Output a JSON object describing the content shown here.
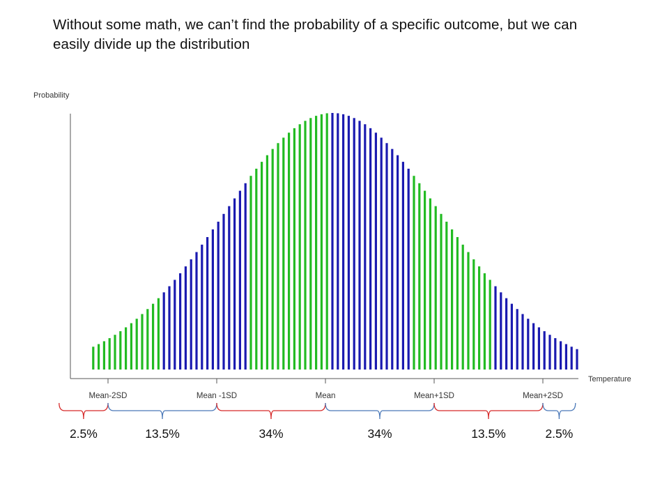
{
  "slide": {
    "title": "Without some math, we can’t find the probability of a specific outcome, but we can easily divide up the distribution"
  },
  "chart_data": {
    "type": "bar",
    "title": "",
    "ylabel": "Probability",
    "xlabel": "Temperature",
    "xlim": [
      -2.4,
      2.25
    ],
    "ylim": [
      0,
      1
    ],
    "bar_count": 90,
    "x_start": -2.2,
    "x_step": 0.05,
    "distribution": "normal (bell curve), mean = 0, SD = 1",
    "color_segments": [
      {
        "from": -2.2,
        "to": -1.55,
        "color": "#22bb22"
      },
      {
        "from": -1.55,
        "to": -0.75,
        "color": "#1a1ab0"
      },
      {
        "from": -0.75,
        "to": 0.0,
        "color": "#22bb22"
      },
      {
        "from": 0.0,
        "to": 0.75,
        "color": "#1a1ab0"
      },
      {
        "from": 0.75,
        "to": 1.5,
        "color": "#22bb22"
      },
      {
        "from": 1.5,
        "to": 2.25,
        "color": "#1a1ab0"
      }
    ],
    "ticks": [
      {
        "x": -2,
        "label": "Mean-2SD"
      },
      {
        "x": -1,
        "label": "Mean -1SD"
      },
      {
        "x": 0,
        "label": "Mean"
      },
      {
        "x": 1,
        "label": "Mean+1SD"
      },
      {
        "x": 2,
        "label": "Mean+2SD"
      }
    ],
    "brackets": [
      {
        "from": -2.45,
        "to": -2.0,
        "label": "2.5%",
        "color": "#d62828"
      },
      {
        "from": -2.0,
        "to": -1.0,
        "label": "13.5%",
        "color": "#4a78b8"
      },
      {
        "from": -1.0,
        "to": 0.0,
        "label": "34%",
        "color": "#d62828"
      },
      {
        "from": 0.0,
        "to": 1.0,
        "label": "34%",
        "color": "#4a78b8"
      },
      {
        "from": 1.0,
        "to": 2.0,
        "label": "13.5%",
        "color": "#d62828"
      },
      {
        "from": 2.0,
        "to": 2.3,
        "label": "2.5%",
        "color": "#4a78b8"
      }
    ],
    "grid": false,
    "axis_color": "#555555"
  }
}
